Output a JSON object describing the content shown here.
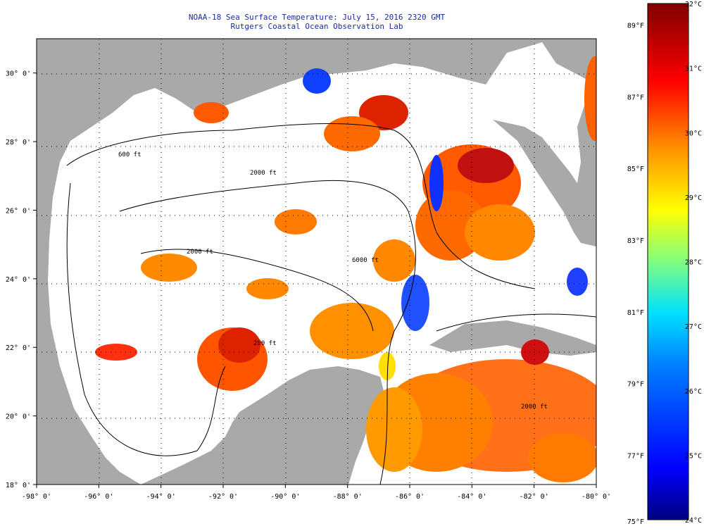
{
  "title": "NOAA-18 Sea Surface Temperature:  July 15, 2016 2320 GMT",
  "subtitle": "Rutgers Coastal Ocean Observation Lab",
  "map": {
    "lon_range": [
      -98,
      -80
    ],
    "lat_range": [
      18,
      31
    ],
    "lon_ticks": [
      "-98° 0'",
      "-96° 0'",
      "-94° 0'",
      "-92° 0'",
      "-90° 0'",
      "-88° 0'",
      "-86° 0'",
      "-84° 0'",
      "-82° 0'",
      "-80° 0'"
    ],
    "lat_ticks": [
      "18° 0'",
      "20° 0'",
      "22° 0'",
      "24° 0'",
      "26° 0'",
      "28° 0'",
      "30° 0'"
    ],
    "land_color": "#a9a9a9",
    "nodata_color": "#ffffff",
    "grid": "dotted",
    "contour_labels": [
      "600 ft",
      "2000 ft",
      "2000 ft",
      "200 ft",
      "2000 ft",
      "6000 ft"
    ]
  },
  "colorbar": {
    "f_labels": [
      "75°F",
      "77°F",
      "79°F",
      "81°F",
      "83°F",
      "85°F",
      "87°F",
      "89°F"
    ],
    "c_labels": [
      "24°C",
      "25°C",
      "26°C",
      "27°C",
      "28°C",
      "29°C",
      "30°C",
      "31°C",
      "32°C"
    ],
    "colors": [
      "#00007f",
      "#0000ff",
      "#007fff",
      "#00ffff",
      "#7fff7f",
      "#ffff00",
      "#ff7f00",
      "#ff0000",
      "#7f0000"
    ]
  }
}
